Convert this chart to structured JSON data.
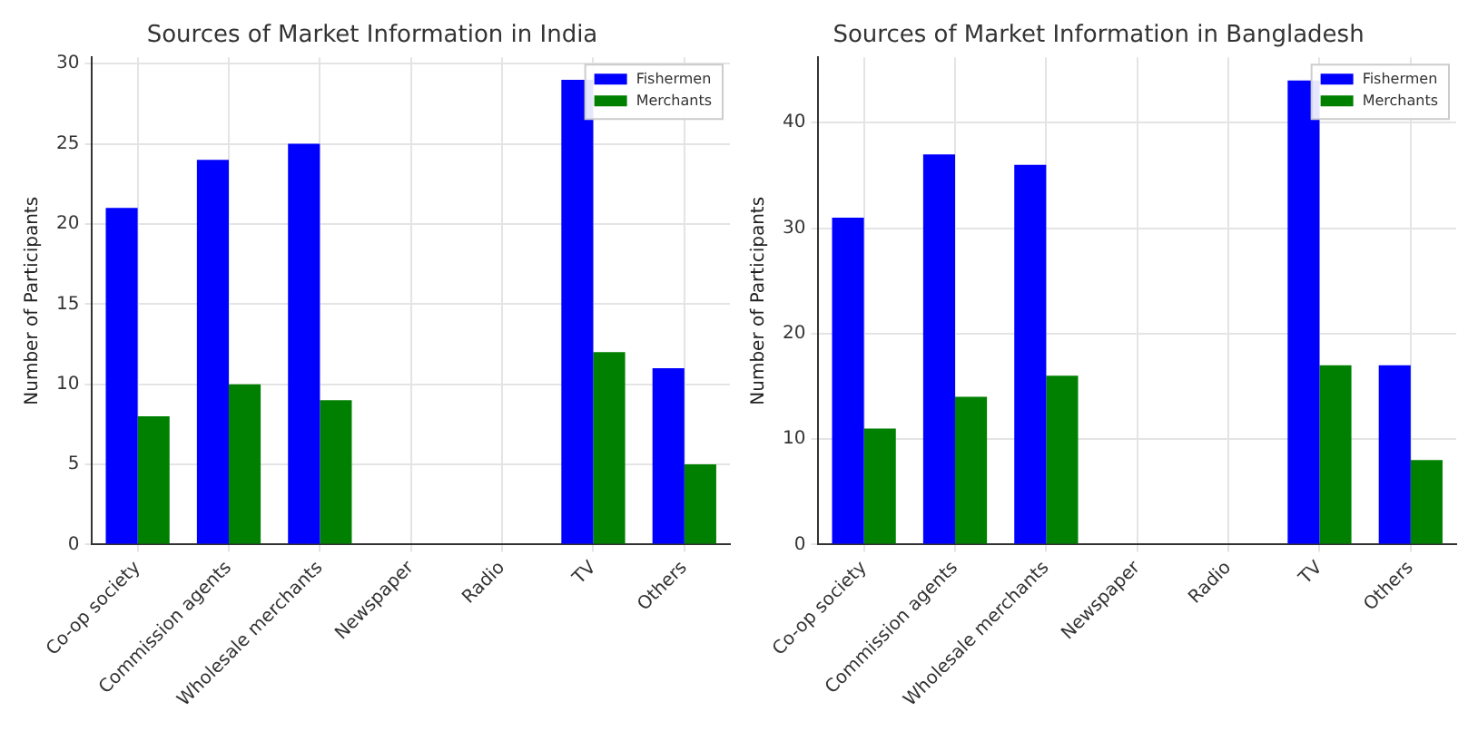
{
  "chart_data": [
    {
      "type": "bar",
      "title": "Sources of Market Information in India",
      "ylabel": "Number of Participants",
      "categories": [
        "Co-op society",
        "Commission agents",
        "Wholesale merchants",
        "Newspaper",
        "Radio",
        "TV",
        "Others"
      ],
      "series": [
        {
          "name": "Fishermen",
          "color": "#0000ff",
          "values": [
            21,
            24,
            25,
            0,
            0,
            29,
            11
          ]
        },
        {
          "name": "Merchants",
          "color": "#008000",
          "values": [
            8,
            10,
            9,
            0,
            0,
            12,
            5
          ]
        }
      ],
      "ylim": [
        0,
        30.4
      ],
      "yticks": [
        0,
        5,
        10,
        15,
        20,
        25,
        30
      ],
      "grid": true,
      "legend": "top right"
    },
    {
      "type": "bar",
      "title": "Sources of Market Information in Bangladesh",
      "ylabel": "Number of Participants",
      "categories": [
        "Co-op society",
        "Commission agents",
        "Wholesale merchants",
        "Newspaper",
        "Radio",
        "TV",
        "Others"
      ],
      "series": [
        {
          "name": "Fishermen",
          "color": "#0000ff",
          "values": [
            31,
            37,
            36,
            0,
            0,
            44,
            17
          ]
        },
        {
          "name": "Merchants",
          "color": "#008000",
          "values": [
            11,
            14,
            16,
            0,
            0,
            17,
            8
          ]
        }
      ],
      "ylim": [
        0,
        46.2
      ],
      "yticks": [
        0,
        10,
        20,
        30,
        40
      ],
      "grid": true,
      "legend": "top right"
    }
  ]
}
